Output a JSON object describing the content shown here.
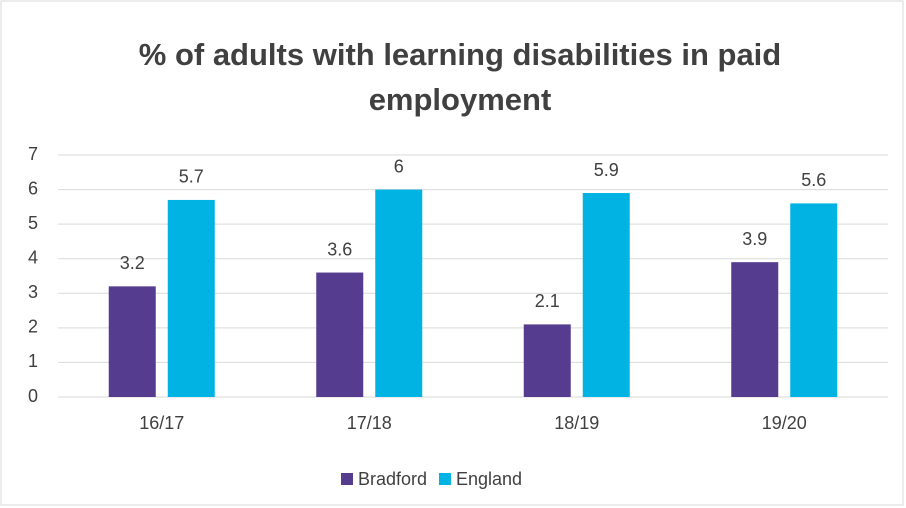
{
  "chart_data": {
    "type": "bar",
    "title": [
      "% of adults with learning disabilities in paid",
      "employment"
    ],
    "categories": [
      "16/17",
      "17/18",
      "18/19",
      "19/20"
    ],
    "series": [
      {
        "name": "Bradford",
        "color": "#553c8f",
        "values": [
          3.2,
          3.6,
          2.1,
          3.9
        ]
      },
      {
        "name": "England",
        "color": "#00b3e3",
        "values": [
          5.7,
          6,
          5.9,
          5.6
        ]
      }
    ],
    "ylim": [
      0,
      7
    ],
    "yticks": [
      0,
      1,
      2,
      3,
      4,
      5,
      6,
      7
    ],
    "grid": true,
    "legend": "bottom"
  }
}
